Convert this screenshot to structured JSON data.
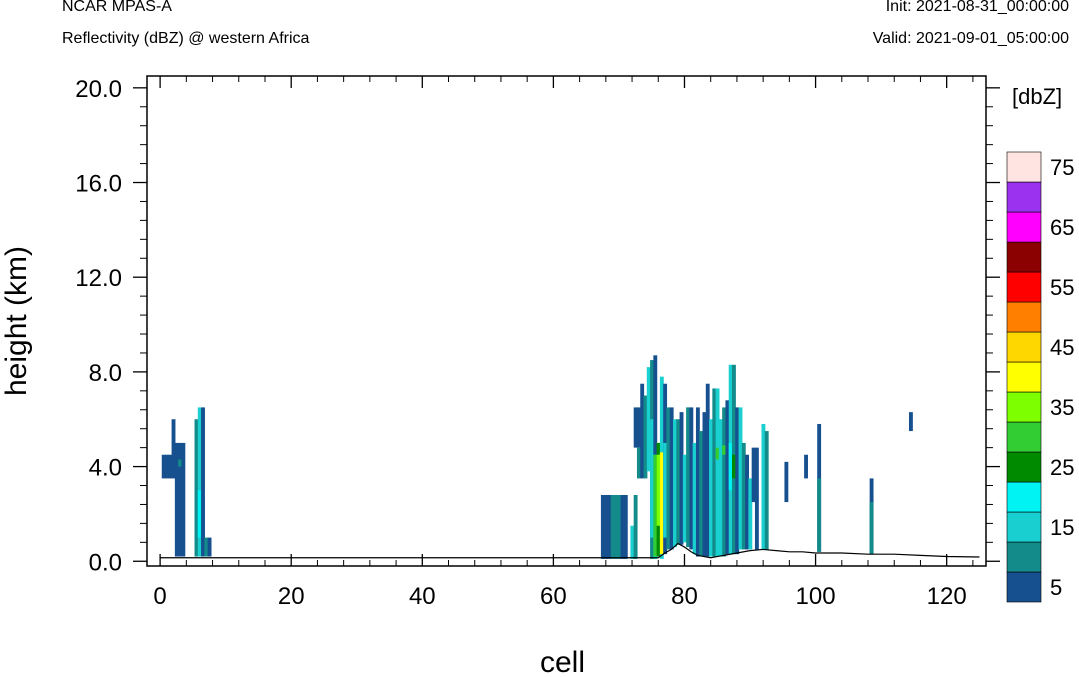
{
  "header": {
    "model": "NCAR MPAS-A",
    "subtitle": "Reflectivity (dBZ) @ western Africa",
    "init": "Init: 2021-08-31_00:00:00",
    "valid": "Valid: 2021-09-01_05:00:00"
  },
  "chart_data": {
    "type": "heatmap",
    "title": "Reflectivity (dBZ) @ western Africa",
    "xlabel": "cell",
    "ylabel": "height (km)",
    "xlim": [
      -2,
      126
    ],
    "ylim": [
      -0.2,
      20.5
    ],
    "xticks": [
      0,
      20,
      40,
      60,
      80,
      100,
      120
    ],
    "xtick_labels": [
      "0",
      "20",
      "40",
      "60",
      "80",
      "100",
      "120"
    ],
    "yticks": [
      0,
      4,
      8,
      12,
      16,
      20
    ],
    "ytick_labels": [
      "0.0",
      "4.0",
      "8.0",
      "12.0",
      "16.0",
      "20.0"
    ],
    "colorbar": {
      "unit": "[dbZ]",
      "levels": [
        5,
        10,
        15,
        20,
        25,
        30,
        35,
        40,
        45,
        50,
        55,
        60,
        65,
        70,
        75
      ],
      "labels": [
        "5",
        "15",
        "25",
        "35",
        "45",
        "55",
        "65",
        "75"
      ],
      "colors": [
        "#16508f",
        "#138b8b",
        "#1acfcf",
        "#00f3f3",
        "#008a00",
        "#32cd32",
        "#7dff00",
        "#ffff00",
        "#ffd700",
        "#ff8000",
        "#ff0000",
        "#8b0000",
        "#ff00ff",
        "#9a32f0",
        "#ffe4e1"
      ]
    },
    "cells": [
      [
        0.5,
        3.5,
        4.5,
        5
      ],
      [
        1,
        3.5,
        4.5,
        5
      ],
      [
        1.5,
        3.5,
        4.5,
        5
      ],
      [
        2,
        3.5,
        6,
        5
      ],
      [
        2.5,
        0.2,
        5,
        5
      ],
      [
        3,
        0.2,
        5,
        5
      ],
      [
        3,
        4,
        4.3,
        10
      ],
      [
        3.5,
        0.2,
        5,
        5
      ],
      [
        5.5,
        0.2,
        6,
        10
      ],
      [
        6,
        0.2,
        6.5,
        15
      ],
      [
        6,
        1,
        3,
        20
      ],
      [
        6.5,
        0.2,
        6.5,
        5
      ],
      [
        7,
        0.2,
        1,
        10
      ],
      [
        7.5,
        0.2,
        1,
        5
      ],
      [
        67.5,
        0.1,
        2.8,
        5
      ],
      [
        68,
        0.1,
        2.8,
        5
      ],
      [
        68.5,
        0.1,
        2.8,
        5
      ],
      [
        69,
        0.1,
        2.8,
        10
      ],
      [
        69.5,
        0.1,
        2.8,
        10
      ],
      [
        70,
        0.1,
        2.8,
        10
      ],
      [
        70.5,
        0.1,
        2.8,
        5
      ],
      [
        71,
        0.1,
        2.8,
        5
      ],
      [
        72,
        0.1,
        1.5,
        15
      ],
      [
        72.5,
        0.1,
        2.8,
        10
      ],
      [
        72.5,
        4.8,
        6.5,
        5
      ],
      [
        73,
        4.8,
        6.5,
        5
      ],
      [
        73,
        3.5,
        4.8,
        10
      ],
      [
        73.5,
        3.5,
        7.5,
        5
      ],
      [
        74,
        3.5,
        7,
        10
      ],
      [
        74.5,
        3.8,
        8.2,
        15
      ],
      [
        75,
        0.1,
        8.5,
        10
      ],
      [
        75,
        1,
        6,
        15
      ],
      [
        75.5,
        0.1,
        8.7,
        5
      ],
      [
        75.5,
        0.1,
        4.5,
        20
      ],
      [
        75.5,
        0.2,
        4.5,
        30
      ],
      [
        76,
        0.2,
        5,
        25
      ],
      [
        76,
        1.5,
        4.5,
        35
      ],
      [
        76.5,
        0.1,
        7.8,
        15
      ],
      [
        76.5,
        0.3,
        4.6,
        40
      ],
      [
        77,
        0.3,
        7.5,
        5
      ],
      [
        77,
        1,
        5,
        15
      ],
      [
        77.5,
        0.5,
        6.5,
        10
      ],
      [
        78,
        0.5,
        6.5,
        5
      ],
      [
        78.5,
        0.6,
        6,
        15
      ],
      [
        79,
        0.7,
        6,
        10
      ],
      [
        79.5,
        0.7,
        6.3,
        5
      ],
      [
        80,
        0.8,
        4.5,
        15
      ],
      [
        80.5,
        0.6,
        6.5,
        10
      ],
      [
        81,
        0.5,
        6.5,
        5
      ],
      [
        81.5,
        0.3,
        5,
        15
      ],
      [
        82,
        0.2,
        6.5,
        5
      ],
      [
        82.5,
        0.2,
        5.5,
        10
      ],
      [
        83,
        0.2,
        6.3,
        5
      ],
      [
        83.5,
        0.2,
        7.5,
        5
      ],
      [
        84,
        0.2,
        6,
        15
      ],
      [
        84.5,
        0.2,
        7.3,
        10
      ],
      [
        85,
        0.2,
        7.3,
        15
      ],
      [
        85,
        4.3,
        4.8,
        30
      ],
      [
        85.5,
        0.2,
        6,
        15
      ],
      [
        86,
        0.2,
        6.5,
        10
      ],
      [
        86,
        4.5,
        4.9,
        30
      ],
      [
        86.5,
        0.3,
        6.8,
        5
      ],
      [
        87,
        0.3,
        8.3,
        15
      ],
      [
        87,
        3,
        5,
        20
      ],
      [
        87.5,
        0.3,
        8.3,
        10
      ],
      [
        87.5,
        3.5,
        4.5,
        25
      ],
      [
        88,
        0.3,
        6.5,
        5
      ],
      [
        88.5,
        0.5,
        6.5,
        15
      ],
      [
        89,
        0.5,
        5,
        10
      ],
      [
        89.5,
        0.5,
        4.5,
        5
      ],
      [
        90,
        0.5,
        3.5,
        15
      ],
      [
        90.5,
        2.5,
        4.8,
        5
      ],
      [
        91,
        0.5,
        4.8,
        5
      ],
      [
        92,
        0.5,
        5.8,
        15
      ],
      [
        92.5,
        0.5,
        5.5,
        10
      ],
      [
        95.5,
        2.5,
        4.2,
        5
      ],
      [
        98.5,
        3.5,
        4.5,
        5
      ],
      [
        100.5,
        0.4,
        5.8,
        5
      ],
      [
        100.5,
        0.4,
        3.5,
        10
      ],
      [
        108.5,
        0.3,
        3.5,
        5
      ],
      [
        108.5,
        0.3,
        2.5,
        10
      ],
      [
        114.5,
        5.5,
        6.3,
        5
      ]
    ],
    "surface": [
      [
        0,
        0.15
      ],
      [
        76,
        0.15
      ],
      [
        77,
        0.35
      ],
      [
        78,
        0.5
      ],
      [
        79,
        0.75
      ],
      [
        80,
        0.6
      ],
      [
        81,
        0.4
      ],
      [
        82,
        0.25
      ],
      [
        83,
        0.2
      ],
      [
        84,
        0.15
      ],
      [
        85,
        0.2
      ],
      [
        86,
        0.25
      ],
      [
        88,
        0.35
      ],
      [
        90,
        0.45
      ],
      [
        92,
        0.5
      ],
      [
        94,
        0.45
      ],
      [
        96,
        0.4
      ],
      [
        98,
        0.4
      ],
      [
        100,
        0.35
      ],
      [
        104,
        0.35
      ],
      [
        108,
        0.3
      ],
      [
        112,
        0.3
      ],
      [
        116,
        0.25
      ],
      [
        120,
        0.2
      ],
      [
        125,
        0.18
      ]
    ]
  }
}
